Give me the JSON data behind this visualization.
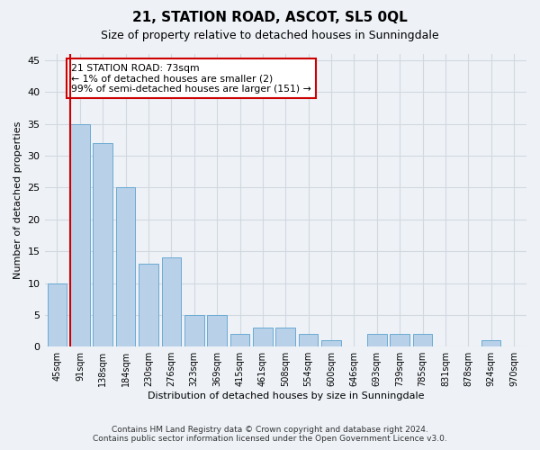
{
  "title": "21, STATION ROAD, ASCOT, SL5 0QL",
  "subtitle": "Size of property relative to detached houses in Sunningdale",
  "xlabel": "Distribution of detached houses by size in Sunningdale",
  "ylabel": "Number of detached properties",
  "footer_line1": "Contains HM Land Registry data © Crown copyright and database right 2024.",
  "footer_line2": "Contains public sector information licensed under the Open Government Licence v3.0.",
  "annotation_title": "21 STATION ROAD: 73sqm",
  "annotation_line1": "← 1% of detached houses are smaller (2)",
  "annotation_line2": "99% of semi-detached houses are larger (151) →",
  "categories": [
    "45sqm",
    "91sqm",
    "138sqm",
    "184sqm",
    "230sqm",
    "276sqm",
    "323sqm",
    "369sqm",
    "415sqm",
    "461sqm",
    "508sqm",
    "554sqm",
    "600sqm",
    "646sqm",
    "693sqm",
    "739sqm",
    "785sqm",
    "831sqm",
    "878sqm",
    "924sqm",
    "970sqm"
  ],
  "values": [
    10,
    35,
    32,
    25,
    13,
    14,
    5,
    5,
    2,
    3,
    3,
    2,
    1,
    0,
    2,
    2,
    2,
    0,
    0,
    1,
    0
  ],
  "bar_color": "#b8d0e8",
  "bar_edge_color": "#6aaad4",
  "highlight_line_color": "#cc0000",
  "annotation_box_color": "#ffffff",
  "annotation_box_edge_color": "#cc0000",
  "grid_color": "#d0d8e0",
  "background_color": "#eef2f7",
  "plot_bg_color": "#eef2f7",
  "ylim": [
    0,
    46
  ],
  "yticks": [
    0,
    5,
    10,
    15,
    20,
    25,
    30,
    35,
    40,
    45
  ],
  "title_fontsize": 11,
  "subtitle_fontsize": 9,
  "xlabel_fontsize": 8,
  "ylabel_fontsize": 8,
  "tick_fontsize": 8,
  "footer_fontsize": 6.5
}
